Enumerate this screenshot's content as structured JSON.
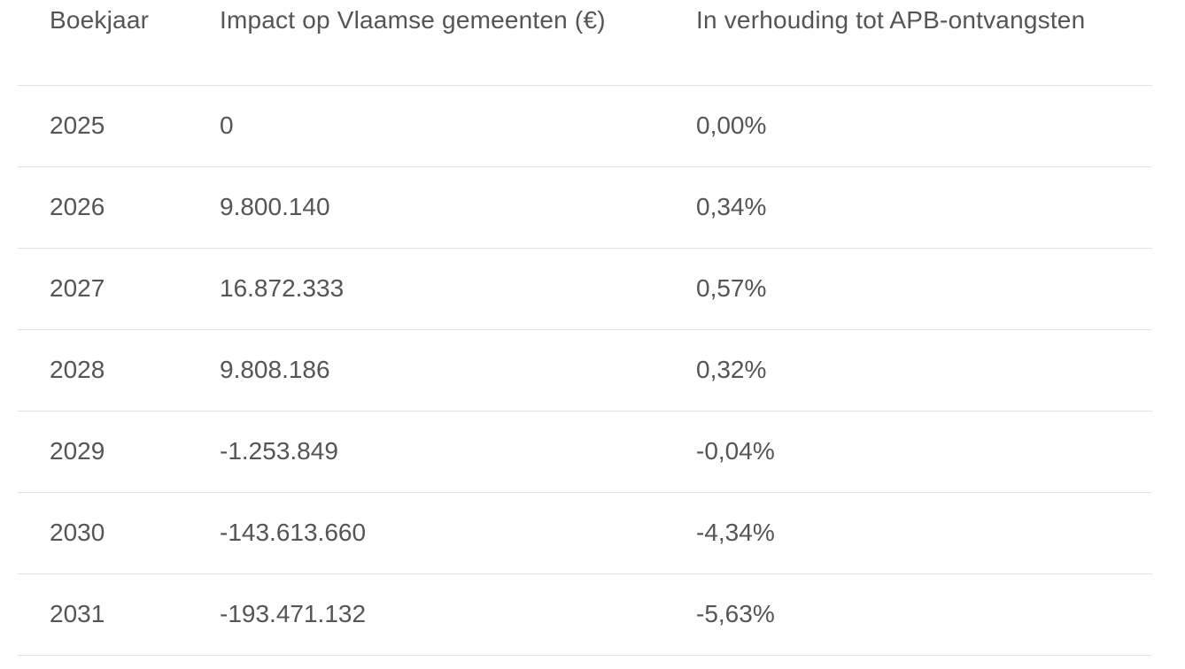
{
  "table": {
    "headers": [
      "Boekjaar",
      "Impact op Vlaamse gemeenten (€)",
      "In verhouding tot APB-ontvangsten"
    ],
    "rows": [
      [
        "2025",
        "0",
        "0,00%"
      ],
      [
        "2026",
        "9.800.140",
        "0,34%"
      ],
      [
        "2027",
        "16.872.333",
        "0,57%"
      ],
      [
        "2028",
        "9.808.186",
        "0,32%"
      ],
      [
        "2029",
        "-1.253.849",
        "-0,04%"
      ],
      [
        "2030",
        "-143.613.660",
        "-4,34%"
      ],
      [
        "2031",
        "-193.471.132",
        "-5,63%"
      ]
    ]
  }
}
